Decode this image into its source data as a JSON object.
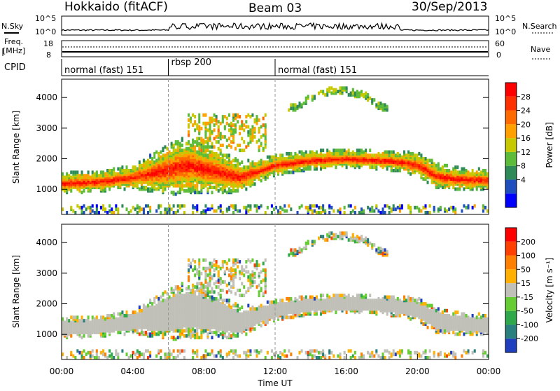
{
  "header": {
    "station": "Hokkaido (fitACF)",
    "beam": "Beam 03",
    "date": "30/Sep/2013"
  },
  "top_panels": {
    "nsky_label": "N.Sky",
    "nsky_ticks": [
      "10^5",
      "10^0"
    ],
    "nsearch_label": "N.Search",
    "nsearch_ticks": [
      "10^5",
      "10^0"
    ],
    "freq_label_1": "Freq.",
    "freq_label_2": "[MHz]",
    "freq_ticks": [
      "18",
      "8"
    ],
    "nave_label": "Nave",
    "nave_ticks": [
      "60",
      "0"
    ],
    "cpid_label": "CPID"
  },
  "cpid": [
    {
      "label": "normal (fast) 151",
      "start_hour": 0
    },
    {
      "label": "rbsp 200",
      "start_hour": 6
    },
    {
      "label": "normal (fast) 151",
      "start_hour": 12
    }
  ],
  "x_axis": {
    "label": "Time UT",
    "ticks": [
      "00:00",
      "04:00",
      "08:00",
      "12:00",
      "16:00",
      "20:00",
      "00:00"
    ]
  },
  "power_panel": {
    "ylabel": "Slant Range [km]",
    "yticks": [
      "4000",
      "3000",
      "2000",
      "1000"
    ],
    "colorbar_label": "Power [dB]",
    "colorbar_ticks": [
      "28",
      "24",
      "20",
      "16",
      "12",
      "8",
      "4"
    ],
    "colors": [
      "#0000ff",
      "#1f4fbf",
      "#2e8b57",
      "#5dbb3a",
      "#c8c800",
      "#ffa000",
      "#ff6a00",
      "#ff3000",
      "#ff0000"
    ]
  },
  "velocity_panel": {
    "ylabel": "Slant Range [km]",
    "yticks": [
      "4000",
      "3000",
      "2000",
      "1000"
    ],
    "colorbar_label": "Velocity [m s⁻¹]",
    "colorbar_ticks": [
      "200",
      "100",
      "50",
      "15",
      "-15",
      "-50",
      "-100",
      "-200"
    ],
    "colors": [
      "#1f3fbf",
      "#2a7f7f",
      "#2ea84a",
      "#66cc33",
      "#c0c0b8",
      "#ffb000",
      "#ff8000",
      "#ff4000",
      "#ff0000"
    ]
  },
  "chart_data": {
    "type": "heatmap",
    "x_range_hours": [
      0,
      24
    ],
    "y_range_km": [
      180,
      4600
    ],
    "power_band": {
      "hours": [
        0,
        2,
        4,
        6,
        7,
        9,
        10,
        11,
        12,
        14,
        16,
        18,
        19,
        20,
        21,
        22,
        24
      ],
      "center_km": [
        1150,
        1200,
        1350,
        1600,
        1750,
        1500,
        1350,
        1550,
        1750,
        1900,
        1950,
        1900,
        1850,
        1750,
        1400,
        1300,
        1250
      ],
      "halfwidth_km": [
        200,
        200,
        220,
        500,
        550,
        400,
        300,
        220,
        200,
        180,
        180,
        180,
        200,
        220,
        250,
        220,
        200
      ]
    },
    "upper_arc_km": {
      "hours": [
        13,
        14,
        15,
        16,
        17,
        18
      ],
      "range_km": [
        3600,
        3950,
        4150,
        4150,
        4000,
        3600
      ]
    }
  }
}
